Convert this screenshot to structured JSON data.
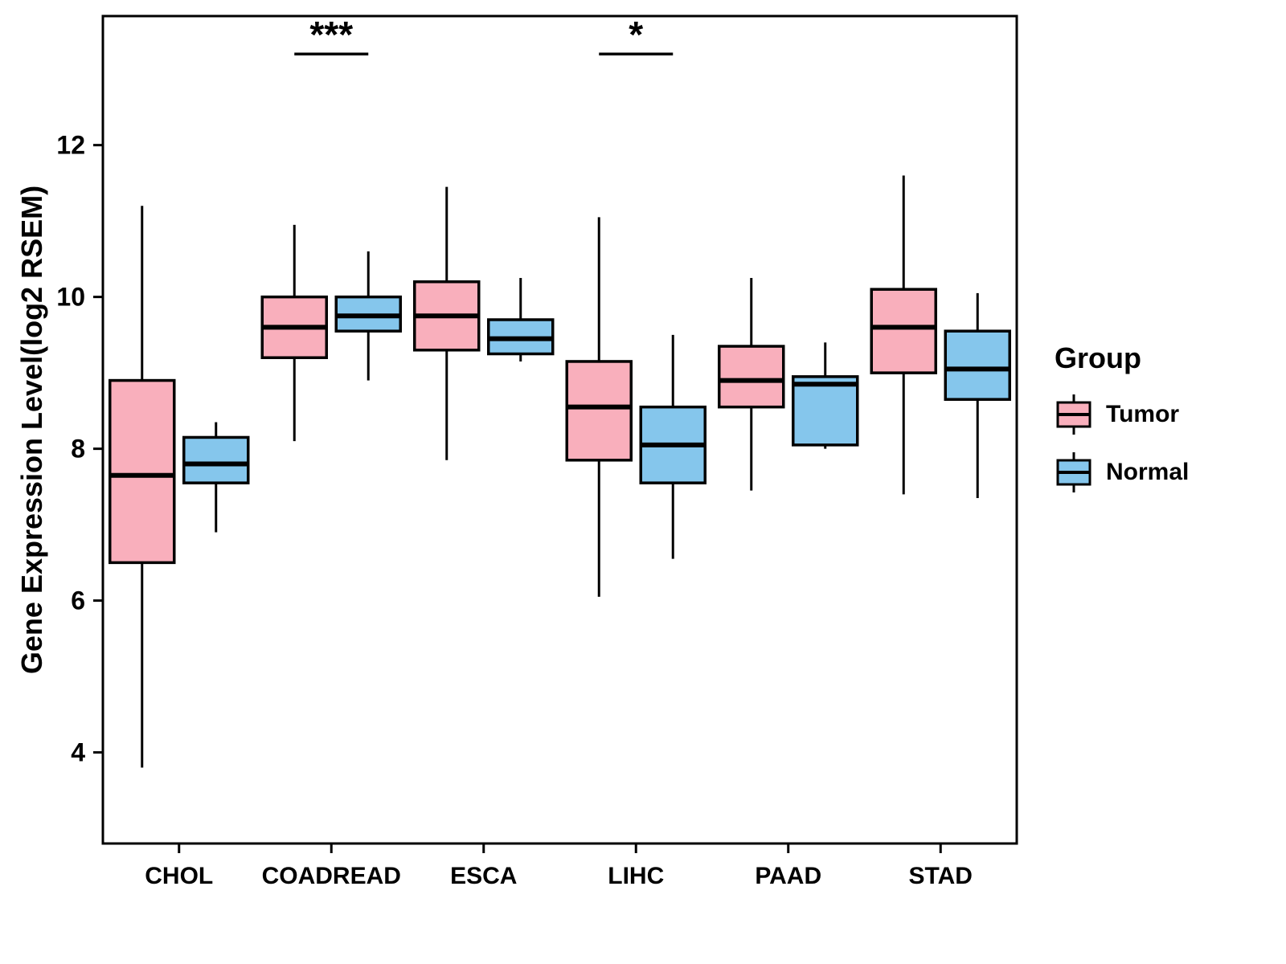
{
  "chart_data": {
    "type": "boxplot",
    "title": "",
    "xlabel": "",
    "ylabel": "Gene Expression Level(log2 RSEM)",
    "ylim": [
      2.8,
      13.7
    ],
    "yticks": [
      4,
      6,
      8,
      10,
      12
    ],
    "grid": false,
    "legend_position": "right",
    "categories": [
      "CHOL",
      "COADREAD",
      "ESCA",
      "LIHC",
      "PAAD",
      "STAD"
    ],
    "series": [
      {
        "name": "Tumor",
        "color": "#F9AFBC",
        "boxes": [
          {
            "low": 3.8,
            "q1": 6.5,
            "median": 7.65,
            "q3": 8.9,
            "high": 11.2
          },
          {
            "low": 8.1,
            "q1": 9.2,
            "median": 9.6,
            "q3": 10.0,
            "high": 10.95
          },
          {
            "low": 7.85,
            "q1": 9.3,
            "median": 9.75,
            "q3": 10.2,
            "high": 11.45
          },
          {
            "low": 6.05,
            "q1": 7.85,
            "median": 8.55,
            "q3": 9.15,
            "high": 11.05
          },
          {
            "low": 7.45,
            "q1": 8.55,
            "median": 8.9,
            "q3": 9.35,
            "high": 10.25
          },
          {
            "low": 7.4,
            "q1": 9.0,
            "median": 9.6,
            "q3": 10.1,
            "high": 11.6
          }
        ]
      },
      {
        "name": "Normal",
        "color": "#85C6EC",
        "boxes": [
          {
            "low": 6.9,
            "q1": 7.55,
            "median": 7.8,
            "q3": 8.15,
            "high": 8.35
          },
          {
            "low": 8.9,
            "q1": 9.55,
            "median": 9.75,
            "q3": 10.0,
            "high": 10.6
          },
          {
            "low": 9.15,
            "q1": 9.25,
            "median": 9.45,
            "q3": 9.7,
            "high": 10.25
          },
          {
            "low": 6.55,
            "q1": 7.55,
            "median": 8.05,
            "q3": 8.55,
            "high": 9.5
          },
          {
            "low": 8.0,
            "q1": 8.05,
            "median": 8.85,
            "q3": 8.95,
            "high": 9.4
          },
          {
            "low": 7.35,
            "q1": 8.65,
            "median": 9.05,
            "q3": 9.55,
            "high": 10.05
          }
        ]
      }
    ],
    "annotations": [
      {
        "category": "COADREAD",
        "label": "***",
        "line_y": 13.2
      },
      {
        "category": "LIHC",
        "label": "*",
        "line_y": 13.2
      }
    ]
  },
  "legend": {
    "title": "Group",
    "items": [
      {
        "label": "Tumor",
        "color": "#F9AFBC"
      },
      {
        "label": "Normal",
        "color": "#85C6EC"
      }
    ]
  }
}
